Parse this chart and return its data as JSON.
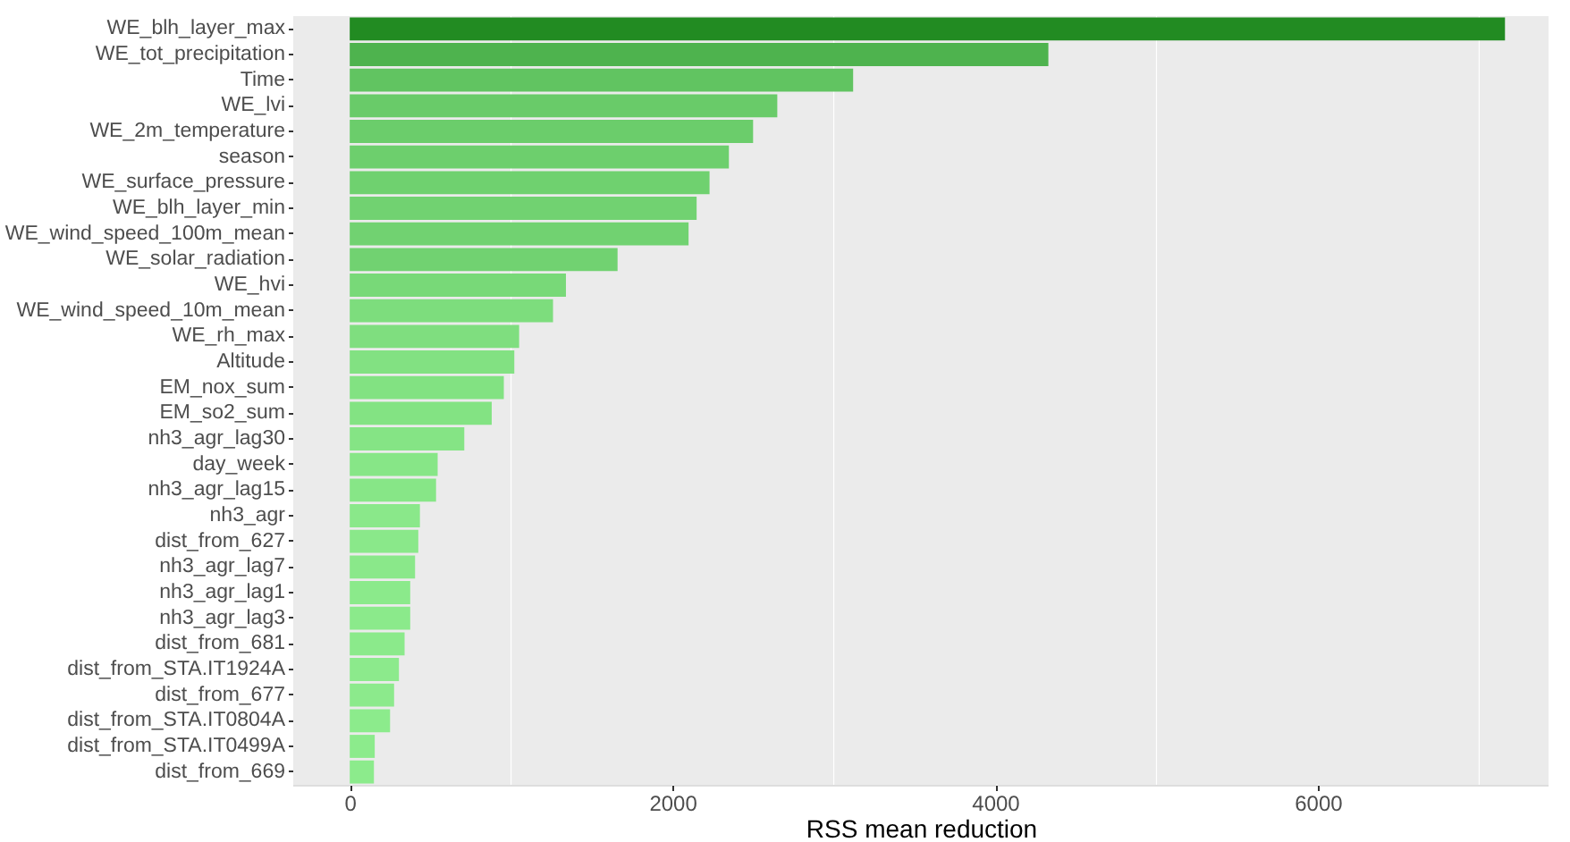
{
  "chart_data": {
    "type": "bar",
    "orientation": "horizontal",
    "xlabel": "RSS mean reduction",
    "categories": [
      "WE_blh_layer_max",
      "WE_tot_precipitation",
      "Time",
      "WE_lvi",
      "WE_2m_temperature",
      "season",
      "WE_surface_pressure",
      "WE_blh_layer_min",
      "WE_wind_speed_100m_mean",
      "WE_solar_radiation",
      "WE_hvi",
      "WE_wind_speed_10m_mean",
      "WE_rh_max",
      "Altitude",
      "EM_nox_sum",
      "EM_so2_sum",
      "nh3_agr_lag30",
      "day_week",
      "nh3_agr_lag15",
      "nh3_agr",
      "dist_from_627",
      "nh3_agr_lag7",
      "nh3_agr_lag1",
      "nh3_agr_lag3",
      "dist_from_681",
      "dist_from_STA.IT1924A",
      "dist_from_677",
      "dist_from_STA.IT0804A",
      "dist_from_STA.IT0499A",
      "dist_from_669"
    ],
    "values": [
      7160,
      4330,
      3120,
      2650,
      2500,
      2350,
      2230,
      2150,
      2100,
      1660,
      1340,
      1260,
      1050,
      1020,
      955,
      880,
      710,
      545,
      535,
      435,
      425,
      405,
      375,
      375,
      340,
      305,
      275,
      250,
      155,
      150
    ],
    "colors": [
      "#228b22",
      "#4eb34e",
      "#61c461",
      "#69cb69",
      "#6bcd6b",
      "#6dcf6d",
      "#6fd16f",
      "#71d271",
      "#71d271",
      "#78d978",
      "#7ddd7d",
      "#7fde7f",
      "#82e182",
      "#82e282",
      "#83e383",
      "#85e485",
      "#87e687",
      "#8ae88a",
      "#8ae88a",
      "#8bea8b",
      "#8bea8b",
      "#8cea8c",
      "#8ceb8c",
      "#8ceb8c",
      "#8deb8d",
      "#8eec8e",
      "#8eec8e",
      "#8eed8e",
      "#90ee90",
      "#90ee90"
    ],
    "xlim": [
      -350,
      7430
    ],
    "xticks": [
      0,
      2000,
      4000,
      6000
    ],
    "grid": true,
    "legend": false
  }
}
